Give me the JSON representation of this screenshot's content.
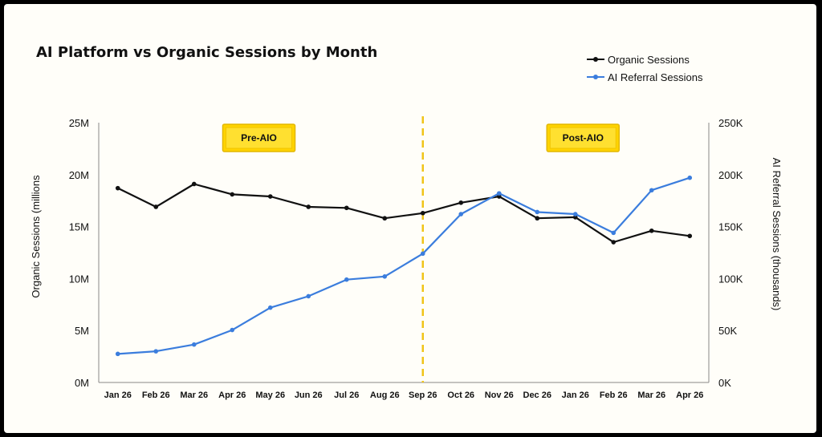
{
  "chart_data": {
    "type": "line",
    "title": "AI Platform vs Organic Sessions by Month",
    "categories": [
      "Jan 26",
      "Feb 26",
      "Mar 26",
      "Apr 26",
      "May 26",
      "Jun 26",
      "Jul 26",
      "Aug 26",
      "Sep 26",
      "Oct 26",
      "Nov 26",
      "Dec 26",
      "Jan 26",
      "Feb 26",
      "Mar 26",
      "Apr 26"
    ],
    "y_left": {
      "label": "Organic Sessions (millions",
      "ylim": [
        0,
        25000000
      ],
      "ticks": [
        0,
        5000000,
        10000000,
        15000000,
        20000000,
        25000000
      ],
      "tick_labels": [
        "0M",
        "5M",
        "10M",
        "15M",
        "20M",
        "25M"
      ]
    },
    "y_right": {
      "label": "AI Referral Sessions (thousands)",
      "ylim": [
        0,
        250000
      ],
      "ticks": [
        0,
        50000,
        100000,
        150000,
        200000,
        250000
      ],
      "tick_labels": [
        "0K",
        "50K",
        "100K",
        "150K",
        "200K",
        "250K"
      ]
    },
    "series": [
      {
        "name": "Organic Sessions",
        "axis": "left",
        "color": "#111111",
        "values": [
          18700000,
          16900000,
          19100000,
          18100000,
          17900000,
          16900000,
          16800000,
          15800000,
          16300000,
          17300000,
          17900000,
          15800000,
          15900000,
          13500000,
          14600000,
          14100000
        ]
      },
      {
        "name": "AI Referral Sessions",
        "axis": "right",
        "color": "#3b7ddd",
        "values": [
          27500,
          30000,
          36500,
          50500,
          72000,
          83000,
          99000,
          102000,
          124000,
          162000,
          182000,
          164000,
          162000,
          144000,
          185000,
          197000
        ]
      }
    ],
    "divider": {
      "after_category_index": 8,
      "color": "#f0c419",
      "style": "dashed"
    },
    "annotations": [
      {
        "text": "Pre-AIO",
        "at_category_index": 3.7
      },
      {
        "text": "Post-AIO",
        "at_category_index": 12.2
      }
    ],
    "legend_position": "top-right",
    "grid": false
  }
}
